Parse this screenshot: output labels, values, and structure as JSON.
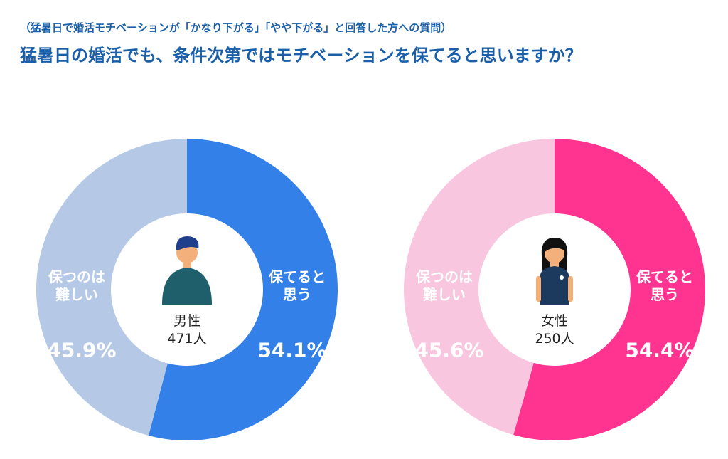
{
  "header": {
    "subtitle": "（猛暑日で婚活モチベーションが「かなり下がる」「やや下がる」と回答した方への質問）",
    "title": "猛暑日の婚活でも、条件次第ではモチベーションを保てると思いますか？"
  },
  "chart_data": [
    {
      "type": "pie",
      "center_label": "男性",
      "center_sublabel": "471人",
      "categories": [
        "保てると\n思う",
        "保つのは\n難しい"
      ],
      "values": [
        54.1,
        45.9
      ],
      "value_labels": [
        "54.1%",
        "45.9%"
      ],
      "colors": [
        "#3380e8",
        "#b5c9e6"
      ]
    },
    {
      "type": "pie",
      "center_label": "女性",
      "center_sublabel": "250人",
      "categories": [
        "保てると\n思う",
        "保つのは\n難しい"
      ],
      "values": [
        54.4,
        45.6
      ],
      "value_labels": [
        "54.4%",
        "45.6%"
      ],
      "colors": [
        "#ff3390",
        "#f9c6df"
      ]
    }
  ]
}
